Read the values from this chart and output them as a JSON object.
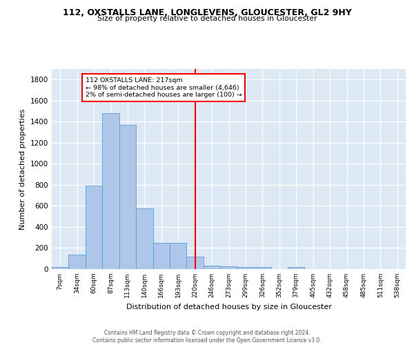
{
  "title": "112, OXSTALLS LANE, LONGLEVENS, GLOUCESTER, GL2 9HY",
  "subtitle": "Size of property relative to detached houses in Gloucester",
  "xlabel": "Distribution of detached houses by size in Gloucester",
  "ylabel": "Number of detached properties",
  "bar_color": "#aec6e8",
  "bar_edge_color": "#5a9fd4",
  "background_color": "#dce9f5",
  "grid_color": "white",
  "bin_labels": [
    "7sqm",
    "34sqm",
    "60sqm",
    "87sqm",
    "113sqm",
    "140sqm",
    "166sqm",
    "193sqm",
    "220sqm",
    "246sqm",
    "273sqm",
    "299sqm",
    "326sqm",
    "352sqm",
    "379sqm",
    "405sqm",
    "432sqm",
    "458sqm",
    "485sqm",
    "511sqm",
    "538sqm"
  ],
  "bin_values": [
    20,
    135,
    795,
    1480,
    1370,
    575,
    248,
    248,
    115,
    35,
    25,
    18,
    18,
    0,
    20,
    0,
    0,
    0,
    0,
    0,
    0
  ],
  "red_line_bin": 8,
  "annotation_line1": "112 OXSTALLS LANE: 217sqm",
  "annotation_line2": "← 98% of detached houses are smaller (4,646)",
  "annotation_line3": "2% of semi-detached houses are larger (100) →",
  "annotation_box_color": "white",
  "annotation_box_edge": "red",
  "vline_color": "red",
  "ylim": [
    0,
    1900
  ],
  "yticks": [
    0,
    200,
    400,
    600,
    800,
    1000,
    1200,
    1400,
    1600,
    1800
  ],
  "footer_line1": "Contains HM Land Registry data © Crown copyright and database right 2024.",
  "footer_line2": "Contains public sector information licensed under the Open Government Licence v3.0."
}
